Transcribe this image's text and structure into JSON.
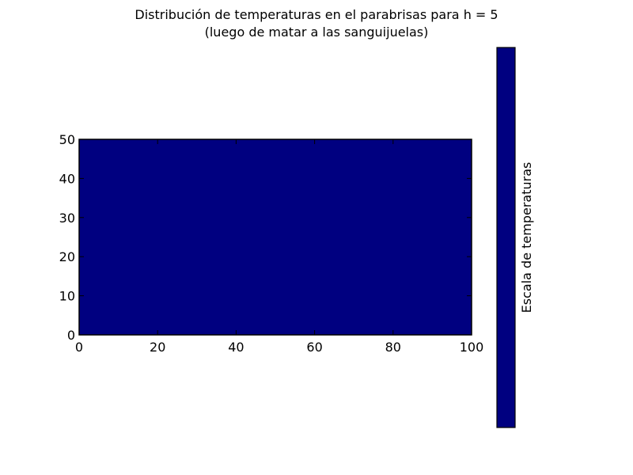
{
  "chart_data": {
    "type": "heatmap",
    "title_line1": "Distribución de temperaturas en el parabrisas para h = 5",
    "title_line2": "(luego de matar a las sanguijuelas)",
    "xlabel": "",
    "ylabel": "",
    "xlim": [
      0,
      100
    ],
    "ylim": [
      0,
      50
    ],
    "x_ticks": [
      "0",
      "20",
      "40",
      "60",
      "80",
      "100"
    ],
    "y_ticks": [
      "0",
      "10",
      "20",
      "30",
      "40",
      "50"
    ],
    "x_tick_values": [
      0,
      20,
      40,
      60,
      80,
      100
    ],
    "y_tick_values": [
      0,
      10,
      20,
      30,
      40,
      50
    ],
    "fill_color": "#000080",
    "colorbar": {
      "label": "Escala de temperaturas",
      "color": "#000080"
    }
  }
}
